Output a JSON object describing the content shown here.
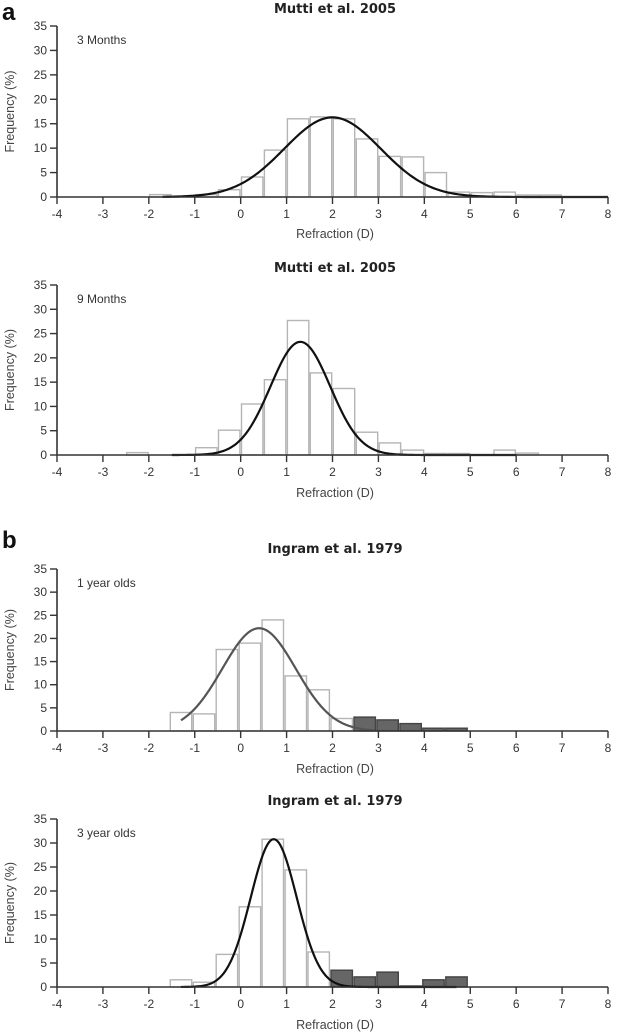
{
  "panel_labels": [
    "a",
    "b"
  ],
  "chart_data": [
    {
      "type": "bar",
      "panel": "a",
      "title": "Mutti et al. 2005",
      "annotation": "3 Months",
      "xlabel": "Refraction (D)",
      "ylabel": "Frequency (%)",
      "xlim": [
        -4,
        8
      ],
      "ylim": [
        0,
        35
      ],
      "xticks": [
        "-4",
        "-3",
        "-2",
        "-1",
        "0",
        "1",
        "2",
        "3",
        "4",
        "5",
        "6",
        "7",
        "8"
      ],
      "yticks": [
        "0",
        "5",
        "10",
        "15",
        "20",
        "25",
        "30",
        "35"
      ],
      "bin_width": 0.5,
      "bins": [
        {
          "x": -1.75,
          "value": 0.5,
          "group": "light"
        },
        {
          "x": -0.75,
          "value": 0.5,
          "group": "light"
        },
        {
          "x": -0.25,
          "value": 1.5,
          "group": "light"
        },
        {
          "x": 0.25,
          "value": 4.1,
          "group": "light"
        },
        {
          "x": 0.75,
          "value": 9.6,
          "group": "light"
        },
        {
          "x": 1.25,
          "value": 16.0,
          "group": "light"
        },
        {
          "x": 1.75,
          "value": 16.4,
          "group": "light"
        },
        {
          "x": 2.25,
          "value": 16.0,
          "group": "light"
        },
        {
          "x": 2.75,
          "value": 11.9,
          "group": "light"
        },
        {
          "x": 3.25,
          "value": 8.3,
          "group": "light"
        },
        {
          "x": 3.75,
          "value": 8.2,
          "group": "light"
        },
        {
          "x": 4.25,
          "value": 5.0,
          "group": "light"
        },
        {
          "x": 4.75,
          "value": 1.0,
          "group": "light"
        },
        {
          "x": 5.25,
          "value": 0.9,
          "group": "light"
        },
        {
          "x": 5.75,
          "value": 1.0,
          "group": "light"
        },
        {
          "x": 6.25,
          "value": 0.4,
          "group": "light"
        },
        {
          "x": 6.75,
          "value": 0.4,
          "group": "light"
        }
      ],
      "fit_curve": {
        "type": "normal",
        "mean": 2.0,
        "peak": 16.3,
        "sd": 1.05,
        "x_range": [
          -1.7,
          8.0
        ],
        "color": "#111111"
      }
    },
    {
      "type": "bar",
      "panel": "a",
      "title": "Mutti et al. 2005",
      "annotation": "9 Months",
      "xlabel": "Refraction (D)",
      "ylabel": "Frequency (%)",
      "xlim": [
        -4,
        8
      ],
      "ylim": [
        0,
        35
      ],
      "xticks": [
        "-4",
        "-3",
        "-2",
        "-1",
        "0",
        "1",
        "2",
        "3",
        "4",
        "5",
        "6",
        "7",
        "8"
      ],
      "yticks": [
        "0",
        "5",
        "10",
        "15",
        "20",
        "25",
        "30",
        "35"
      ],
      "bin_width": 0.5,
      "bins": [
        {
          "x": -2.25,
          "value": 0.5,
          "group": "light"
        },
        {
          "x": -0.75,
          "value": 1.5,
          "group": "light"
        },
        {
          "x": -0.25,
          "value": 5.1,
          "group": "light"
        },
        {
          "x": 0.25,
          "value": 10.5,
          "group": "light"
        },
        {
          "x": 0.75,
          "value": 15.5,
          "group": "light"
        },
        {
          "x": 1.25,
          "value": 27.7,
          "group": "light"
        },
        {
          "x": 1.75,
          "value": 16.9,
          "group": "light"
        },
        {
          "x": 2.25,
          "value": 13.7,
          "group": "light"
        },
        {
          "x": 2.75,
          "value": 4.7,
          "group": "light"
        },
        {
          "x": 3.25,
          "value": 2.5,
          "group": "light"
        },
        {
          "x": 3.75,
          "value": 1.0,
          "group": "light"
        },
        {
          "x": 4.25,
          "value": 0.3,
          "group": "light"
        },
        {
          "x": 4.75,
          "value": 0.3,
          "group": "light"
        },
        {
          "x": 5.75,
          "value": 1.0,
          "group": "light"
        },
        {
          "x": 6.25,
          "value": 0.4,
          "group": "light"
        }
      ],
      "fit_curve": {
        "type": "normal",
        "mean": 1.3,
        "peak": 23.3,
        "sd": 0.65,
        "x_range": [
          -1.5,
          6.0
        ],
        "color": "#111111"
      }
    },
    {
      "type": "bar",
      "panel": "b",
      "title": "Ingram et al. 1979",
      "annotation": "1 year olds",
      "xlabel": "Refraction (D)",
      "ylabel": "Frequency (%)",
      "xlim": [
        -4,
        8
      ],
      "ylim": [
        0,
        35
      ],
      "xticks": [
        "-4",
        "-3",
        "-2",
        "-1",
        "0",
        "1",
        "2",
        "3",
        "4",
        "5",
        "6",
        "7",
        "8"
      ],
      "yticks": [
        "0",
        "5",
        "10",
        "15",
        "20",
        "25",
        "30",
        "35"
      ],
      "bin_width": 0.5,
      "bins": [
        {
          "x": -1.3,
          "value": 4.0,
          "group": "light"
        },
        {
          "x": -0.8,
          "value": 3.7,
          "group": "light"
        },
        {
          "x": -0.3,
          "value": 17.6,
          "group": "light"
        },
        {
          "x": 0.2,
          "value": 19.0,
          "group": "light"
        },
        {
          "x": 0.7,
          "value": 24.0,
          "group": "light"
        },
        {
          "x": 1.2,
          "value": 11.9,
          "group": "light"
        },
        {
          "x": 1.7,
          "value": 8.9,
          "group": "light"
        },
        {
          "x": 2.2,
          "value": 2.7,
          "group": "light"
        },
        {
          "x": 2.7,
          "value": 3.0,
          "group": "dark"
        },
        {
          "x": 3.2,
          "value": 2.4,
          "group": "dark"
        },
        {
          "x": 3.7,
          "value": 1.6,
          "group": "dark"
        },
        {
          "x": 4.2,
          "value": 0.6,
          "group": "dark"
        },
        {
          "x": 4.7,
          "value": 0.6,
          "group": "dark"
        }
      ],
      "fit_curve": {
        "type": "normal",
        "mean": 0.4,
        "peak": 22.2,
        "sd": 0.8,
        "x_range": [
          -1.3,
          2.9
        ],
        "color": "#555555"
      }
    },
    {
      "type": "bar",
      "panel": "b",
      "title": "Ingram et al. 1979",
      "annotation": "3 year olds",
      "xlabel": "Refraction (D)",
      "ylabel": "Frequency (%)",
      "xlim": [
        -4,
        8
      ],
      "ylim": [
        0,
        35
      ],
      "xticks": [
        "-4",
        "-3",
        "-2",
        "-1",
        "0",
        "1",
        "2",
        "3",
        "4",
        "5",
        "6",
        "7",
        "8"
      ],
      "yticks": [
        "0",
        "5",
        "10",
        "15",
        "20",
        "25",
        "30",
        "35"
      ],
      "bin_width": 0.5,
      "bins": [
        {
          "x": -1.3,
          "value": 1.5,
          "group": "light"
        },
        {
          "x": -0.8,
          "value": 1.0,
          "group": "light"
        },
        {
          "x": -0.3,
          "value": 6.8,
          "group": "light"
        },
        {
          "x": 0.2,
          "value": 16.7,
          "group": "light"
        },
        {
          "x": 0.7,
          "value": 30.8,
          "group": "light"
        },
        {
          "x": 1.2,
          "value": 24.4,
          "group": "light"
        },
        {
          "x": 1.7,
          "value": 7.3,
          "group": "light"
        },
        {
          "x": 2.2,
          "value": 3.5,
          "group": "dark"
        },
        {
          "x": 2.7,
          "value": 2.1,
          "group": "dark"
        },
        {
          "x": 3.2,
          "value": 3.1,
          "group": "dark"
        },
        {
          "x": 3.7,
          "value": 0.2,
          "group": "dark"
        },
        {
          "x": 4.2,
          "value": 1.5,
          "group": "dark"
        },
        {
          "x": 4.7,
          "value": 2.1,
          "group": "dark"
        }
      ],
      "fit_curve": {
        "type": "normal",
        "mean": 0.72,
        "peak": 30.8,
        "sd": 0.5,
        "x_range": [
          -1.3,
          4.7
        ],
        "color": "#111111"
      }
    }
  ],
  "colors": {
    "bar_light_stroke": "#b5b5b5",
    "bar_dark_fill": "#666666",
    "bar_dark_stroke": "#444444",
    "axis": "#333333"
  }
}
